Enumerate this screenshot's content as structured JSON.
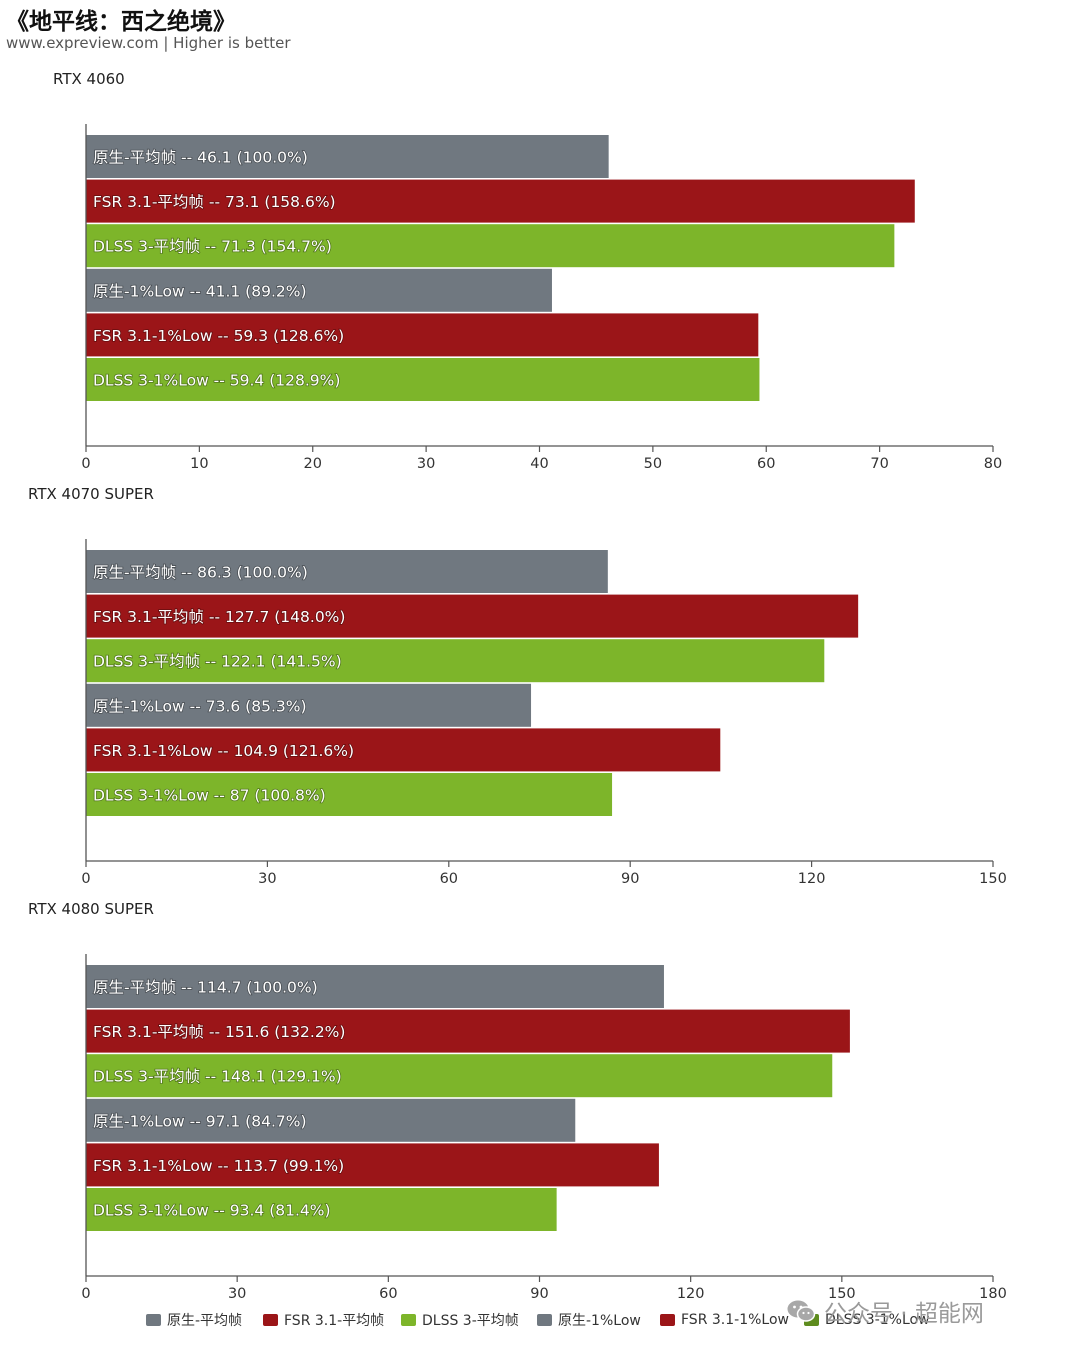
{
  "title": "《地平线：西之绝境》",
  "subtitle": "www.expreview.com | Higher is better",
  "colors": {
    "native": "#707880",
    "fsr": "#9b1518",
    "dlss": "#7db52a",
    "dlss_low_legend": "#5e8c1e",
    "axis": "#555555"
  },
  "legend": [
    {
      "label": "原生-平均帧",
      "color": "#707880"
    },
    {
      "label": "FSR 3.1-平均帧",
      "color": "#9b1518"
    },
    {
      "label": "DLSS 3-平均帧",
      "color": "#7db52a"
    },
    {
      "label": "原生-1%Low",
      "color": "#707880"
    },
    {
      "label": "FSR 3.1-1%Low",
      "color": "#9b1518"
    },
    {
      "label": "DLSS 3-1%Low",
      "color": "#5e8c1e"
    }
  ],
  "watermark": {
    "text": "公众号 · 超能网",
    "icon": "wechat-icon"
  },
  "chart_data": [
    {
      "type": "bar",
      "orientation": "horizontal",
      "title": "RTX 4060",
      "xlim": [
        0,
        80
      ],
      "xticks": [
        0,
        10,
        20,
        30,
        40,
        50,
        60,
        70,
        80
      ],
      "bars": [
        {
          "label": "原生-平均帧 -- 46.1 (100.0%)",
          "value": 46.1,
          "color": "#707880"
        },
        {
          "label": "FSR 3.1-平均帧 -- 73.1 (158.6%)",
          "value": 73.1,
          "color": "#9b1518"
        },
        {
          "label": "DLSS 3-平均帧 -- 71.3 (154.7%)",
          "value": 71.3,
          "color": "#7db52a"
        },
        {
          "label": "原生-1%Low -- 41.1 (89.2%)",
          "value": 41.1,
          "color": "#707880"
        },
        {
          "label": "FSR 3.1-1%Low -- 59.3 (128.6%)",
          "value": 59.3,
          "color": "#9b1518"
        },
        {
          "label": "DLSS 3-1%Low -- 59.4 (128.9%)",
          "value": 59.4,
          "color": "#7db52a"
        }
      ]
    },
    {
      "type": "bar",
      "orientation": "horizontal",
      "title": "RTX 4070 SUPER",
      "xlim": [
        0,
        150
      ],
      "xticks": [
        0,
        30,
        60,
        90,
        120,
        150
      ],
      "bars": [
        {
          "label": "原生-平均帧 -- 86.3 (100.0%)",
          "value": 86.3,
          "color": "#707880"
        },
        {
          "label": "FSR 3.1-平均帧 -- 127.7 (148.0%)",
          "value": 127.7,
          "color": "#9b1518"
        },
        {
          "label": "DLSS 3-平均帧 -- 122.1 (141.5%)",
          "value": 122.1,
          "color": "#7db52a"
        },
        {
          "label": "原生-1%Low -- 73.6 (85.3%)",
          "value": 73.6,
          "color": "#707880"
        },
        {
          "label": "FSR 3.1-1%Low -- 104.9 (121.6%)",
          "value": 104.9,
          "color": "#9b1518"
        },
        {
          "label": "DLSS 3-1%Low -- 87 (100.8%)",
          "value": 87,
          "color": "#7db52a"
        }
      ]
    },
    {
      "type": "bar",
      "orientation": "horizontal",
      "title": "RTX 4080 SUPER",
      "xlim": [
        0,
        180
      ],
      "xticks": [
        0,
        30,
        60,
        90,
        120,
        150,
        180
      ],
      "bars": [
        {
          "label": "原生-平均帧 -- 114.7 (100.0%)",
          "value": 114.7,
          "color": "#707880"
        },
        {
          "label": "FSR 3.1-平均帧 -- 151.6 (132.2%)",
          "value": 151.6,
          "color": "#9b1518"
        },
        {
          "label": "DLSS 3-平均帧 -- 148.1 (129.1%)",
          "value": 148.1,
          "color": "#7db52a"
        },
        {
          "label": "原生-1%Low -- 97.1 (84.7%)",
          "value": 97.1,
          "color": "#707880"
        },
        {
          "label": "FSR 3.1-1%Low -- 113.7 (99.1%)",
          "value": 113.7,
          "color": "#9b1518"
        },
        {
          "label": "DLSS 3-1%Low -- 93.4 (81.4%)",
          "value": 93.4,
          "color": "#7db52a"
        }
      ]
    }
  ]
}
